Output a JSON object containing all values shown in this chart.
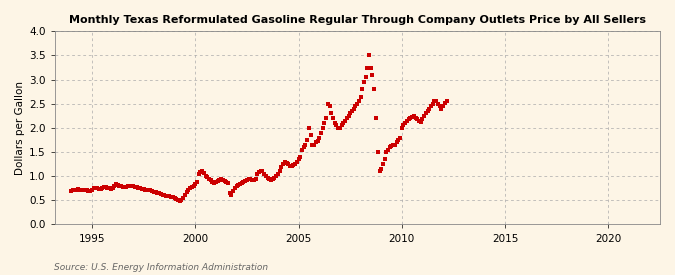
{
  "title": "Monthly Texas Reformulated Gasoline Regular Through Company Outlets Price by All Sellers",
  "ylabel": "Dollars per Gallon",
  "source": "Source: U.S. Energy Information Administration",
  "background_color": "#fdf5e6",
  "marker_color": "#cc0000",
  "xlim": [
    1993.2,
    2022.5
  ],
  "ylim": [
    0.0,
    4.0
  ],
  "xticks": [
    1995,
    2000,
    2005,
    2010,
    2015,
    2020
  ],
  "yticks": [
    0.0,
    0.5,
    1.0,
    1.5,
    2.0,
    2.5,
    3.0,
    3.5,
    4.0
  ],
  "data": [
    [
      1994.0,
      0.7
    ],
    [
      1994.08,
      0.71
    ],
    [
      1994.17,
      0.72
    ],
    [
      1994.25,
      0.72
    ],
    [
      1994.33,
      0.73
    ],
    [
      1994.42,
      0.72
    ],
    [
      1994.5,
      0.71
    ],
    [
      1994.58,
      0.72
    ],
    [
      1994.67,
      0.72
    ],
    [
      1994.75,
      0.71
    ],
    [
      1994.83,
      0.7
    ],
    [
      1994.92,
      0.7
    ],
    [
      1995.0,
      0.72
    ],
    [
      1995.08,
      0.75
    ],
    [
      1995.17,
      0.76
    ],
    [
      1995.25,
      0.75
    ],
    [
      1995.33,
      0.73
    ],
    [
      1995.42,
      0.74
    ],
    [
      1995.5,
      0.76
    ],
    [
      1995.58,
      0.78
    ],
    [
      1995.67,
      0.77
    ],
    [
      1995.75,
      0.76
    ],
    [
      1995.83,
      0.75
    ],
    [
      1995.92,
      0.74
    ],
    [
      1996.0,
      0.76
    ],
    [
      1996.08,
      0.8
    ],
    [
      1996.17,
      0.83
    ],
    [
      1996.25,
      0.82
    ],
    [
      1996.33,
      0.8
    ],
    [
      1996.42,
      0.79
    ],
    [
      1996.5,
      0.78
    ],
    [
      1996.58,
      0.77
    ],
    [
      1996.67,
      0.78
    ],
    [
      1996.75,
      0.8
    ],
    [
      1996.83,
      0.8
    ],
    [
      1996.92,
      0.79
    ],
    [
      1997.0,
      0.79
    ],
    [
      1997.08,
      0.78
    ],
    [
      1997.17,
      0.77
    ],
    [
      1997.25,
      0.76
    ],
    [
      1997.33,
      0.75
    ],
    [
      1997.42,
      0.74
    ],
    [
      1997.5,
      0.73
    ],
    [
      1997.58,
      0.72
    ],
    [
      1997.67,
      0.72
    ],
    [
      1997.75,
      0.72
    ],
    [
      1997.83,
      0.71
    ],
    [
      1997.92,
      0.7
    ],
    [
      1998.0,
      0.68
    ],
    [
      1998.08,
      0.67
    ],
    [
      1998.17,
      0.66
    ],
    [
      1998.25,
      0.65
    ],
    [
      1998.33,
      0.63
    ],
    [
      1998.42,
      0.62
    ],
    [
      1998.5,
      0.61
    ],
    [
      1998.58,
      0.6
    ],
    [
      1998.67,
      0.59
    ],
    [
      1998.75,
      0.58
    ],
    [
      1998.83,
      0.57
    ],
    [
      1998.92,
      0.56
    ],
    [
      1999.0,
      0.54
    ],
    [
      1999.08,
      0.52
    ],
    [
      1999.17,
      0.5
    ],
    [
      1999.25,
      0.48
    ],
    [
      1999.33,
      0.5
    ],
    [
      1999.42,
      0.55
    ],
    [
      1999.5,
      0.62
    ],
    [
      1999.58,
      0.68
    ],
    [
      1999.67,
      0.72
    ],
    [
      1999.75,
      0.76
    ],
    [
      1999.83,
      0.78
    ],
    [
      1999.92,
      0.8
    ],
    [
      2000.0,
      0.83
    ],
    [
      2000.08,
      0.88
    ],
    [
      2000.17,
      1.05
    ],
    [
      2000.25,
      1.08
    ],
    [
      2000.33,
      1.1
    ],
    [
      2000.42,
      1.06
    ],
    [
      2000.5,
      1.0
    ],
    [
      2000.58,
      0.98
    ],
    [
      2000.67,
      0.95
    ],
    [
      2000.75,
      0.92
    ],
    [
      2000.83,
      0.88
    ],
    [
      2000.92,
      0.85
    ],
    [
      2001.0,
      0.87
    ],
    [
      2001.08,
      0.9
    ],
    [
      2001.17,
      0.93
    ],
    [
      2001.25,
      0.95
    ],
    [
      2001.33,
      0.92
    ],
    [
      2001.42,
      0.9
    ],
    [
      2001.5,
      0.88
    ],
    [
      2001.58,
      0.85
    ],
    [
      2001.67,
      0.65
    ],
    [
      2001.75,
      0.62
    ],
    [
      2001.83,
      0.7
    ],
    [
      2001.92,
      0.75
    ],
    [
      2002.0,
      0.8
    ],
    [
      2002.08,
      0.82
    ],
    [
      2002.17,
      0.83
    ],
    [
      2002.25,
      0.85
    ],
    [
      2002.33,
      0.87
    ],
    [
      2002.42,
      0.9
    ],
    [
      2002.5,
      0.93
    ],
    [
      2002.58,
      0.95
    ],
    [
      2002.67,
      0.95
    ],
    [
      2002.75,
      0.93
    ],
    [
      2002.83,
      0.92
    ],
    [
      2002.92,
      0.95
    ],
    [
      2003.0,
      1.05
    ],
    [
      2003.08,
      1.08
    ],
    [
      2003.17,
      1.1
    ],
    [
      2003.25,
      1.1
    ],
    [
      2003.33,
      1.05
    ],
    [
      2003.42,
      1.0
    ],
    [
      2003.5,
      0.97
    ],
    [
      2003.58,
      0.95
    ],
    [
      2003.67,
      0.93
    ],
    [
      2003.75,
      0.95
    ],
    [
      2003.83,
      0.97
    ],
    [
      2003.92,
      1.0
    ],
    [
      2004.0,
      1.05
    ],
    [
      2004.08,
      1.1
    ],
    [
      2004.17,
      1.18
    ],
    [
      2004.25,
      1.25
    ],
    [
      2004.33,
      1.3
    ],
    [
      2004.42,
      1.28
    ],
    [
      2004.5,
      1.25
    ],
    [
      2004.58,
      1.22
    ],
    [
      2004.67,
      1.22
    ],
    [
      2004.75,
      1.23
    ],
    [
      2004.83,
      1.25
    ],
    [
      2004.92,
      1.3
    ],
    [
      2005.0,
      1.35
    ],
    [
      2005.08,
      1.4
    ],
    [
      2005.17,
      1.55
    ],
    [
      2005.25,
      1.6
    ],
    [
      2005.33,
      1.65
    ],
    [
      2005.42,
      1.75
    ],
    [
      2005.5,
      2.0
    ],
    [
      2005.58,
      1.85
    ],
    [
      2005.67,
      1.65
    ],
    [
      2005.75,
      1.65
    ],
    [
      2005.83,
      1.7
    ],
    [
      2005.92,
      1.73
    ],
    [
      2006.0,
      1.8
    ],
    [
      2006.08,
      1.9
    ],
    [
      2006.17,
      2.0
    ],
    [
      2006.25,
      2.1
    ],
    [
      2006.33,
      2.2
    ],
    [
      2006.42,
      2.5
    ],
    [
      2006.5,
      2.45
    ],
    [
      2006.58,
      2.3
    ],
    [
      2006.67,
      2.2
    ],
    [
      2006.75,
      2.1
    ],
    [
      2006.83,
      2.05
    ],
    [
      2006.92,
      2.0
    ],
    [
      2007.0,
      2.0
    ],
    [
      2007.08,
      2.05
    ],
    [
      2007.17,
      2.1
    ],
    [
      2007.25,
      2.15
    ],
    [
      2007.33,
      2.2
    ],
    [
      2007.42,
      2.25
    ],
    [
      2007.5,
      2.3
    ],
    [
      2007.58,
      2.35
    ],
    [
      2007.67,
      2.4
    ],
    [
      2007.75,
      2.45
    ],
    [
      2007.83,
      2.5
    ],
    [
      2007.92,
      2.55
    ],
    [
      2008.0,
      2.65
    ],
    [
      2008.08,
      2.8
    ],
    [
      2008.17,
      2.95
    ],
    [
      2008.25,
      3.05
    ],
    [
      2008.33,
      3.25
    ],
    [
      2008.42,
      3.5
    ],
    [
      2008.5,
      3.25
    ],
    [
      2008.58,
      3.1
    ],
    [
      2008.67,
      2.8
    ],
    [
      2008.75,
      2.2
    ],
    [
      2008.83,
      1.5
    ],
    [
      2008.92,
      1.1
    ],
    [
      2009.0,
      1.15
    ],
    [
      2009.08,
      1.25
    ],
    [
      2009.17,
      1.35
    ],
    [
      2009.25,
      1.5
    ],
    [
      2009.33,
      1.55
    ],
    [
      2009.42,
      1.6
    ],
    [
      2009.5,
      1.62
    ],
    [
      2009.58,
      1.65
    ],
    [
      2009.67,
      1.65
    ],
    [
      2009.75,
      1.7
    ],
    [
      2009.83,
      1.75
    ],
    [
      2009.92,
      1.8
    ],
    [
      2010.0,
      2.0
    ],
    [
      2010.08,
      2.05
    ],
    [
      2010.17,
      2.1
    ],
    [
      2010.25,
      2.15
    ],
    [
      2010.33,
      2.18
    ],
    [
      2010.42,
      2.2
    ],
    [
      2010.5,
      2.22
    ],
    [
      2010.58,
      2.25
    ],
    [
      2010.67,
      2.2
    ],
    [
      2010.75,
      2.18
    ],
    [
      2010.83,
      2.15
    ],
    [
      2010.92,
      2.12
    ],
    [
      2011.0,
      2.18
    ],
    [
      2011.08,
      2.25
    ],
    [
      2011.17,
      2.3
    ],
    [
      2011.25,
      2.35
    ],
    [
      2011.33,
      2.4
    ],
    [
      2011.42,
      2.45
    ],
    [
      2011.5,
      2.5
    ],
    [
      2011.58,
      2.55
    ],
    [
      2011.67,
      2.55
    ],
    [
      2011.75,
      2.5
    ],
    [
      2011.83,
      2.45
    ],
    [
      2011.92,
      2.4
    ],
    [
      2012.0,
      2.45
    ],
    [
      2012.08,
      2.52
    ],
    [
      2012.17,
      2.55
    ]
  ]
}
